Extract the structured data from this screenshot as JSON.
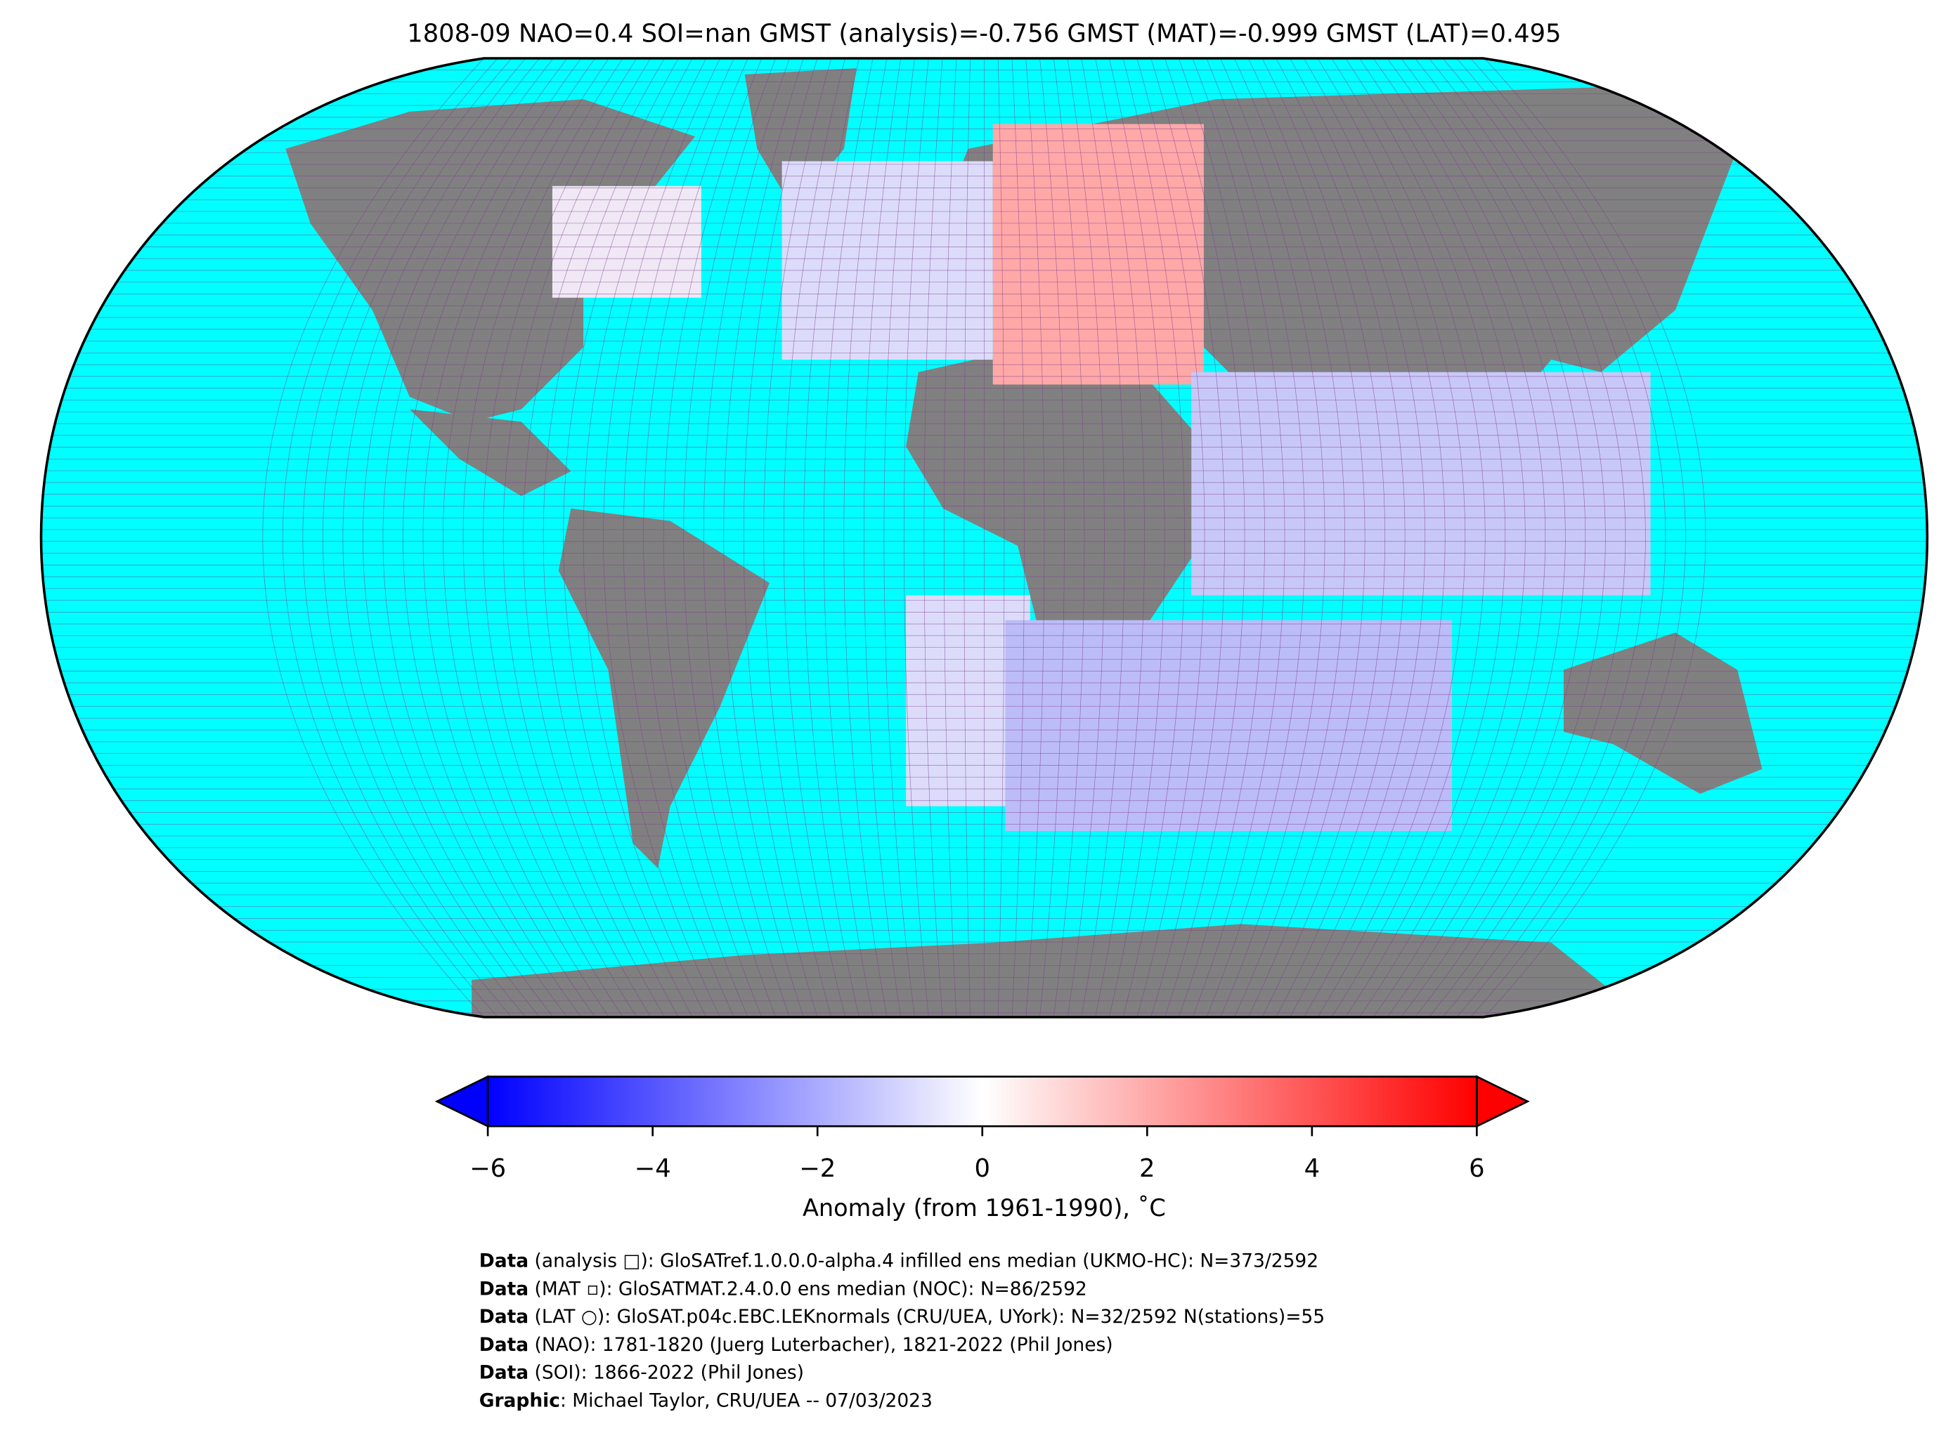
{
  "chart_data": {
    "type": "map",
    "title": "1808-09 NAO=0.4 SOI=nan GMST (analysis)=-0.756 GMST (MAT)=-0.999 GMST (LAT)=0.495",
    "colorbar": {
      "clim": [
        -6,
        6
      ],
      "cticks": [
        {
          "value": -6,
          "label": "−6"
        },
        {
          "value": -4,
          "label": "−4"
        },
        {
          "value": -2,
          "label": "−2"
        },
        0,
        2,
        4,
        6
      ],
      "label": "Anomaly (from 1961-1990), ˚C",
      "colors": [
        "#0000ff",
        "#ffffff",
        "#ff0000"
      ]
    },
    "ocean_color": "#00ffff",
    "land_color": "#808080",
    "notes": [
      {
        "bold": "Data",
        "text": " (analysis □): GloSATref.1.0.0.0-alpha.4 infilled ens median (UKMO-HC): N=373/2592"
      },
      {
        "bold": "Data",
        "text": " (MAT ▫): GloSATMAT.2.4.0.0 ens median (NOC): N=86/2592"
      },
      {
        "bold": "Data",
        "text": " (LAT ○): GloSAT.p04c.EBC.LEKnormals (CRU/UEA, UYork): N=32/2592 N(stations)=55"
      },
      {
        "bold": "Data",
        "text": " (NAO): 1781-1820 (Juerg Luterbacher), 1821-2022 (Phil Jones)"
      },
      {
        "bold": "Data",
        "text": " (SOI): 1866-2022 (Phil Jones)"
      },
      {
        "bold": "Graphic",
        "text": ": Michael Taylor, CRU/UEA -- 07/03/2023"
      }
    ]
  }
}
